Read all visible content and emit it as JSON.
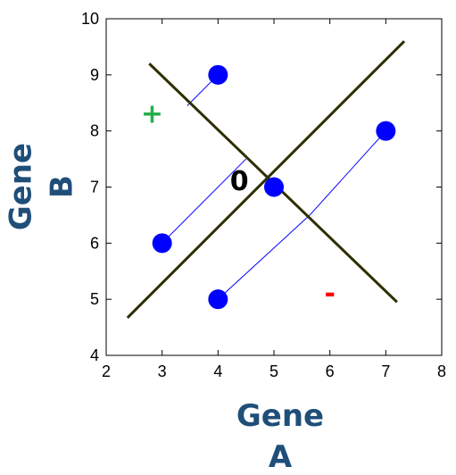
{
  "chart_data": {
    "type": "scatter",
    "title": "",
    "xlabel_lines": [
      "Gene",
      "A"
    ],
    "ylabel_lines": [
      "Gene",
      "B"
    ],
    "xlim": [
      2,
      8
    ],
    "ylim": [
      4,
      10
    ],
    "xticks": [
      "2",
      "3",
      "4",
      "5",
      "6",
      "7",
      "8"
    ],
    "yticks": [
      "4",
      "5",
      "6",
      "7",
      "8",
      "9",
      "10"
    ],
    "grid": false,
    "points": [
      {
        "x": 4,
        "y": 9
      },
      {
        "x": 3,
        "y": 6
      },
      {
        "x": 5,
        "y": 7
      },
      {
        "x": 4,
        "y": 5
      },
      {
        "x": 7,
        "y": 8
      }
    ],
    "point_color": "#0000ff",
    "lines": [
      {
        "name": "",
        "x": [
          2.38,
          7.33
        ],
        "y": [
          4.67,
          9.6
        ],
        "color": "#2e2e00"
      },
      {
        "name": "",
        "x": [
          2.77,
          7.2
        ],
        "y": [
          9.2,
          4.95
        ],
        "color": "#2e2e00"
      }
    ],
    "projections": [
      {
        "from": [
          4,
          9
        ],
        "to": [
          3.45,
          8.45
        ]
      },
      {
        "from": [
          3,
          6
        ],
        "to": [
          4.5,
          7.5
        ]
      },
      {
        "from": [
          4,
          5
        ],
        "to": [
          5.64,
          6.5
        ]
      },
      {
        "from": [
          7,
          8
        ],
        "to": [
          5.64,
          6.5
        ]
      }
    ],
    "projection_color": "#0000ff",
    "annotations": [
      {
        "text": "+",
        "x": 2.82,
        "y": 8.28,
        "color": "#22b04a"
      },
      {
        "text": "0",
        "x": 4.38,
        "y": 7.08,
        "color": "#000000"
      },
      {
        "text": "-",
        "x": 6.0,
        "y": 5.08,
        "color": "#ff0000"
      }
    ]
  }
}
